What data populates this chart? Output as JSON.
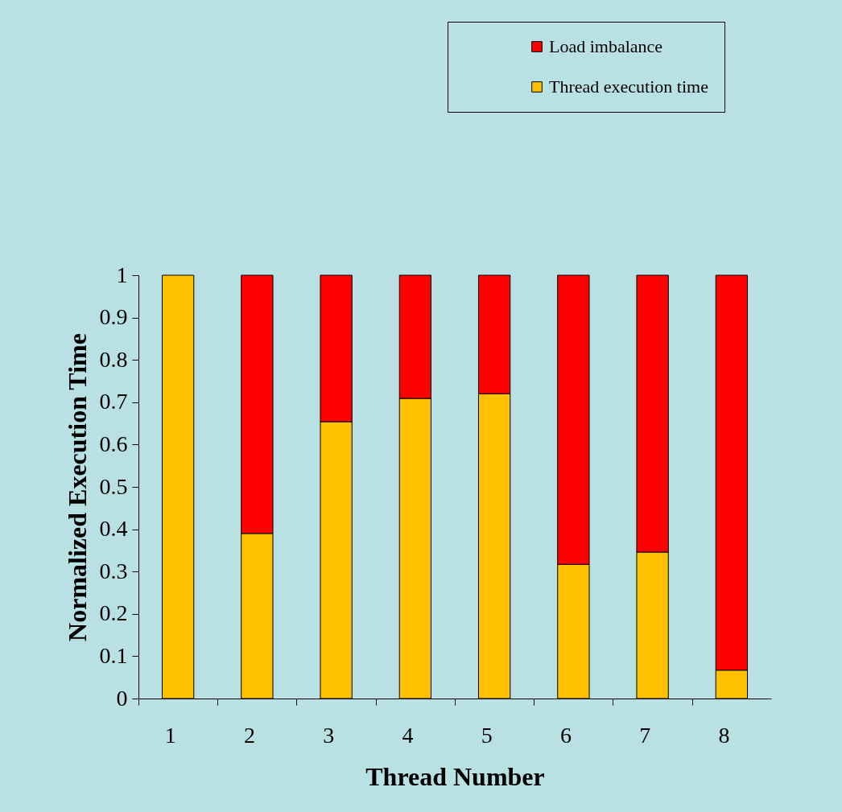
{
  "chart_data": {
    "type": "bar",
    "stacked": true,
    "xlabel": "Thread Number",
    "ylabel": "Normalized Execution Time",
    "categories": [
      "1",
      "2",
      "3",
      "4",
      "5",
      "6",
      "7",
      "8"
    ],
    "series": [
      {
        "name": "Thread execution time",
        "color": "#ffc000",
        "values": [
          1,
          0.39,
          0.654,
          0.709,
          0.72,
          0.317,
          0.346,
          0.067
        ]
      },
      {
        "name": "Load imbalance",
        "color": "#ff0000",
        "values": [
          null,
          0.61,
          0.346,
          0.291,
          0.28,
          0.683,
          0.654,
          0.933
        ]
      }
    ],
    "ylim": [
      0,
      1
    ],
    "yticks": [
      0,
      0.1,
      0.2,
      0.3,
      0.4,
      0.5,
      0.6,
      0.7,
      0.8,
      0.9,
      1
    ],
    "grid": false,
    "legend": "top right"
  }
}
